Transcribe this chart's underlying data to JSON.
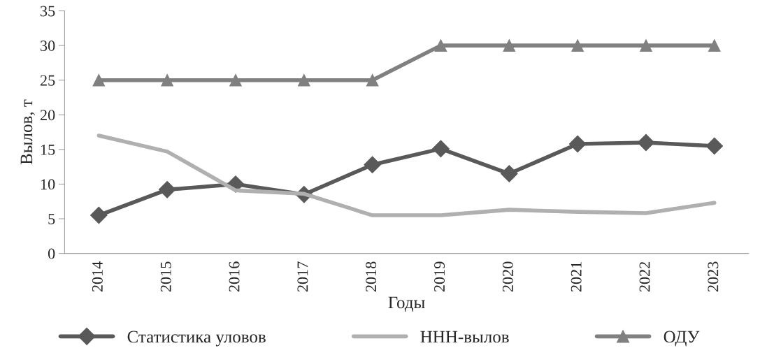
{
  "chart_data": {
    "type": "line",
    "xlabel": "Годы",
    "ylabel": "Вылов, т",
    "categories": [
      "2014",
      "2015",
      "2016",
      "2017",
      "2018",
      "2019",
      "2020",
      "2021",
      "2022",
      "2023"
    ],
    "series": [
      {
        "name": "Статистика уловов",
        "color": "#595959",
        "marker": "diamond",
        "values": [
          5.5,
          9.2,
          10.0,
          8.5,
          12.8,
          15.1,
          11.5,
          15.8,
          16.0,
          15.5
        ]
      },
      {
        "name": "ННН-вылов",
        "color": "#b0b0b0",
        "marker": "none",
        "values": [
          17.0,
          14.7,
          9.1,
          8.6,
          5.5,
          5.5,
          6.3,
          6.0,
          5.8,
          7.3
        ]
      },
      {
        "name": "ОДУ",
        "color": "#808080",
        "marker": "triangle",
        "values": [
          25,
          25,
          25,
          25,
          25,
          30,
          30,
          30,
          30,
          30
        ]
      }
    ],
    "ylim": [
      0,
      35
    ],
    "yticks": [
      0,
      5,
      10,
      15,
      20,
      25,
      30,
      35
    ],
    "grid": false,
    "legend": "bottom"
  }
}
